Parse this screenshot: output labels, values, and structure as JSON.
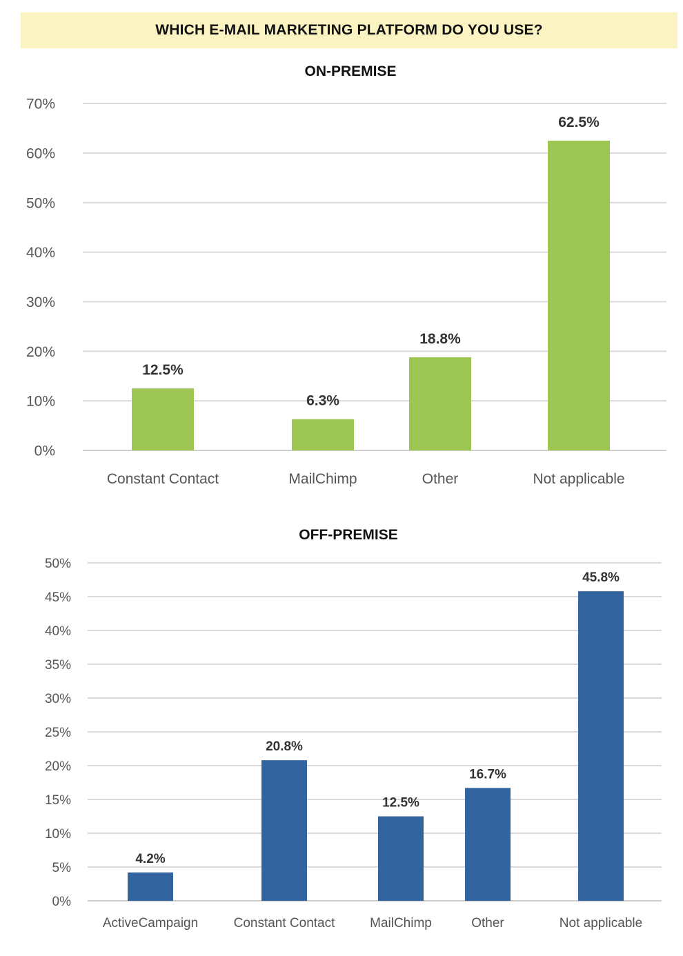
{
  "title": "WHICH E-MAIL MARKETING PLATFORM DO YOU USE?",
  "colors": {
    "banner": "#fbf3c1",
    "on_premise_bar": "#9ec654",
    "off_premise_bar": "#32659f"
  },
  "chart_data": [
    {
      "type": "bar",
      "title": "ON-PREMISE",
      "categories": [
        "Constant Contact",
        "MailChimp",
        "Other",
        "Not applicable"
      ],
      "values": [
        12.5,
        6.3,
        18.8,
        62.5
      ],
      "data_labels": [
        "12.5%",
        "6.3%",
        "18.8%",
        "62.5%"
      ],
      "ylim": [
        0,
        70
      ],
      "yticks": [
        0,
        10,
        20,
        30,
        40,
        50,
        60,
        70
      ],
      "ytick_labels": [
        "0%",
        "10%",
        "20%",
        "30%",
        "40%",
        "50%",
        "60%",
        "70%"
      ],
      "color": "#9ec654",
      "grid": true,
      "legend": "none"
    },
    {
      "type": "bar",
      "title": "OFF-PREMISE",
      "categories": [
        "ActiveCampaign",
        "Constant Contact",
        "MailChimp",
        "Other",
        "Not applicable"
      ],
      "values": [
        4.2,
        20.8,
        12.5,
        16.7,
        45.8
      ],
      "data_labels": [
        "4.2%",
        "20.8%",
        "12.5%",
        "16.7%",
        "45.8%"
      ],
      "ylim": [
        0,
        50
      ],
      "yticks": [
        0,
        5,
        10,
        15,
        20,
        25,
        30,
        35,
        40,
        45,
        50
      ],
      "ytick_labels": [
        "0%",
        "5%",
        "10%",
        "15%",
        "20%",
        "25%",
        "30%",
        "35%",
        "40%",
        "45%",
        "50%"
      ],
      "color": "#32659f",
      "grid": true,
      "legend": "none"
    }
  ]
}
